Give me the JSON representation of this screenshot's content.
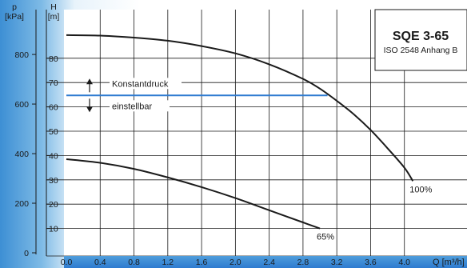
{
  "chart_data": {
    "type": "line",
    "title": "SQE 3-65",
    "subtitle": "ISO 2548 Anhang B",
    "xlabel": "Q [m³/h]",
    "ylabel_left_outer": "p [kPa]",
    "ylabel_left_outer_top": "p",
    "ylabel_left_outer_unit": "[kPa]",
    "ylabel_left_inner_top": "H",
    "ylabel_left_inner_unit": "[m]",
    "xlim": [
      0,
      4.4
    ],
    "ylim": [
      0,
      100
    ],
    "x_ticks": [
      "0.0",
      "0.4",
      "0.8",
      "1.2",
      "1.6",
      "2.0",
      "2.4",
      "2.8",
      "3.2",
      "3.6",
      "4.0"
    ],
    "x_tick_values": [
      0,
      0.4,
      0.8,
      1.2,
      1.6,
      2.0,
      2.4,
      2.8,
      3.2,
      3.6,
      4.0
    ],
    "h_ticks": [
      "10",
      "20",
      "30",
      "40",
      "50",
      "60",
      "70",
      "80"
    ],
    "h_tick_values": [
      10,
      20,
      30,
      40,
      50,
      60,
      70,
      80
    ],
    "p_ticks": [
      "0",
      "200",
      "400",
      "600",
      "800"
    ],
    "p_tick_values": [
      0,
      200,
      400,
      600,
      800
    ],
    "grid": true,
    "series": [
      {
        "name": "100%",
        "color": "#1a1a1a",
        "x": [
          0,
          0.4,
          0.8,
          1.2,
          1.6,
          2.0,
          2.4,
          2.8,
          3.0,
          3.2,
          3.4,
          3.6,
          3.8,
          4.0,
          4.1
        ],
        "y": [
          89.5,
          89.3,
          88.5,
          87.2,
          85,
          82,
          77.5,
          71.5,
          67.5,
          62.5,
          57,
          50.5,
          43,
          35,
          29.5
        ]
      },
      {
        "name": "65%",
        "color": "#1a1a1a",
        "x": [
          0,
          0.4,
          0.8,
          1.2,
          1.6,
          2.0,
          2.4,
          2.8,
          3.0
        ],
        "y": [
          38.5,
          37,
          34.5,
          31,
          27,
          22.5,
          17.5,
          12.5,
          10
        ]
      }
    ],
    "reference_line": {
      "y": 64.7,
      "x_end": 3.09,
      "color": "#2e7bd0",
      "label_top": "Konstantdruck",
      "label_bottom": "einstellbar"
    },
    "colors": {
      "background_left": "#5aa5dc",
      "accent": "#2e7bd0",
      "curve": "#1a1a1a"
    }
  }
}
